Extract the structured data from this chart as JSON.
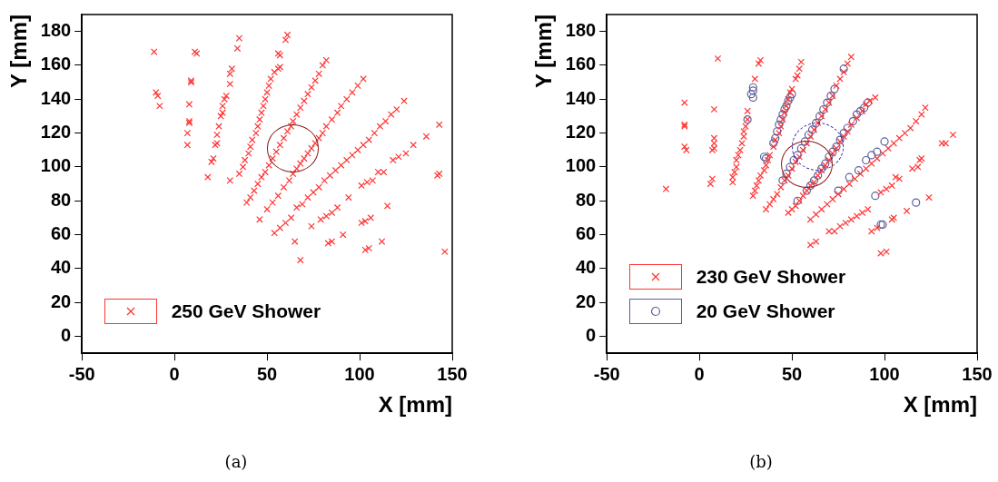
{
  "chart_data": [
    {
      "type": "scatter",
      "xlabel": "X [mm]",
      "ylabel": "Y [mm]",
      "xlim": [
        -50,
        150
      ],
      "ylim": [
        -10,
        190
      ],
      "xticks": [
        -50,
        0,
        50,
        100,
        150
      ],
      "yticks": [
        0,
        20,
        40,
        60,
        80,
        100,
        120,
        140,
        160,
        180
      ],
      "grid": false,
      "legend": "bottom left",
      "annotations": [
        "(a)"
      ],
      "series": [
        {
          "name": "250 GeV Shower",
          "color": "#ff3333",
          "marker": "cross",
          "x": [
            -11,
            -10,
            -9,
            -8,
            11,
            12,
            9,
            9,
            8,
            8,
            8,
            7,
            7,
            35,
            34,
            31,
            30,
            30,
            28,
            27,
            26,
            26,
            25,
            24,
            23,
            23,
            22,
            21,
            20,
            18,
            30,
            35,
            37,
            38,
            40,
            41,
            42,
            44,
            45,
            46,
            47,
            48,
            49,
            50,
            51,
            52,
            54,
            56,
            57,
            56,
            57,
            60,
            61,
            39,
            41,
            43,
            45,
            47,
            49,
            51,
            53,
            55,
            57,
            59,
            61,
            63,
            64,
            66,
            68,
            70,
            72,
            74,
            76,
            78,
            80,
            82,
            46,
            50,
            53,
            56,
            59,
            62,
            64,
            66,
            68,
            70,
            72,
            74,
            76,
            78,
            80,
            82,
            85,
            88,
            90,
            93,
            96,
            99,
            102,
            54,
            57,
            60,
            63,
            66,
            69,
            72,
            75,
            78,
            81,
            84,
            87,
            90,
            93,
            96,
            99,
            102,
            105,
            108,
            111,
            114,
            117,
            120,
            124,
            74,
            79,
            82,
            85,
            88,
            94,
            101,
            104,
            107,
            110,
            113,
            118,
            121,
            125,
            129,
            65,
            115,
            68,
            83,
            85,
            91,
            101,
            103,
            106,
            103,
            105,
            112,
            136,
            143,
            142,
            143,
            146
          ],
          "values": [
            168,
            144,
            142,
            136,
            168,
            167,
            151,
            150,
            137,
            127,
            126,
            120,
            113,
            176,
            170,
            158,
            155,
            149,
            142,
            140,
            136,
            132,
            130,
            124,
            119,
            114,
            113,
            105,
            103,
            94,
            92,
            96,
            100,
            104,
            108,
            112,
            116,
            120,
            124,
            128,
            132,
            136,
            140,
            144,
            148,
            152,
            156,
            158,
            159,
            167,
            166,
            175,
            178,
            79,
            82,
            86,
            90,
            94,
            97,
            101,
            105,
            109,
            113,
            117,
            121,
            124,
            127,
            131,
            135,
            139,
            143,
            147,
            151,
            155,
            160,
            163,
            69,
            75,
            79,
            83,
            88,
            92,
            96,
            99,
            102,
            105,
            108,
            111,
            114,
            117,
            120,
            124,
            128,
            132,
            136,
            140,
            144,
            148,
            152,
            61,
            64,
            67,
            70,
            76,
            78,
            82,
            85,
            88,
            92,
            95,
            98,
            101,
            104,
            107,
            110,
            113,
            116,
            120,
            124,
            127,
            131,
            134,
            139,
            65,
            69,
            71,
            73,
            76,
            82,
            89,
            91,
            92,
            97,
            97,
            104,
            106,
            108,
            113,
            56,
            77,
            45,
            55,
            56,
            60,
            67,
            68,
            70,
            51,
            52,
            56,
            118,
            125,
            95,
            96,
            50
          ]
        }
      ]
    },
    {
      "type": "scatter",
      "xlabel": "X [mm]",
      "ylabel": "Y [mm]",
      "xlim": [
        -50,
        150
      ],
      "ylim": [
        -10,
        190
      ],
      "xticks": [
        -50,
        0,
        50,
        100,
        150
      ],
      "yticks": [
        0,
        20,
        40,
        60,
        80,
        100,
        120,
        140,
        160,
        180
      ],
      "grid": false,
      "legend": "bottom left",
      "annotations": [
        "(b)"
      ],
      "series": [
        {
          "name": "230 GeV Shower",
          "color": "#ff3333",
          "marker": "cross",
          "x": [
            -18,
            -8,
            -8,
            -8,
            -8,
            -7,
            6,
            7,
            8,
            8,
            8,
            8,
            7,
            10,
            30,
            32,
            33,
            18,
            18,
            19,
            20,
            20,
            21,
            22,
            23,
            24,
            24,
            25,
            26,
            26,
            29,
            30,
            31,
            32,
            33,
            35,
            36,
            37,
            38,
            40,
            41,
            43,
            44,
            45,
            46,
            47,
            48,
            49,
            50,
            52,
            53,
            54,
            55,
            36,
            38,
            40,
            42,
            44,
            46,
            48,
            50,
            52,
            54,
            56,
            58,
            60,
            62,
            64,
            66,
            68,
            70,
            72,
            74,
            76,
            78,
            80,
            82,
            48,
            50,
            52,
            54,
            56,
            58,
            60,
            62,
            64,
            66,
            68,
            70,
            72,
            74,
            76,
            78,
            80,
            82,
            85,
            88,
            90,
            92,
            95,
            60,
            63,
            66,
            69,
            72,
            75,
            78,
            81,
            84,
            87,
            90,
            93,
            96,
            99,
            102,
            105,
            108,
            111,
            114,
            117,
            120,
            122,
            60,
            63,
            70,
            73,
            76,
            79,
            82,
            85,
            88,
            91,
            93,
            96,
            98,
            101,
            104,
            106,
            108,
            112,
            115,
            118,
            119,
            120,
            124,
            131,
            133,
            137,
            104,
            105,
            98,
            101
          ],
          "values": [
            87,
            138,
            125,
            124,
            112,
            110,
            90,
            93,
            134,
            117,
            114,
            111,
            110,
            164,
            152,
            161,
            163,
            91,
            94,
            97,
            100,
            104,
            107,
            110,
            114,
            118,
            121,
            124,
            128,
            133,
            83,
            86,
            89,
            92,
            95,
            98,
            101,
            104,
            107,
            112,
            116,
            120,
            124,
            128,
            132,
            136,
            140,
            144,
            146,
            152,
            154,
            158,
            162,
            75,
            78,
            81,
            84,
            88,
            92,
            95,
            99,
            103,
            106,
            110,
            114,
            118,
            122,
            126,
            130,
            134,
            138,
            142,
            148,
            152,
            156,
            161,
            165,
            73,
            75,
            77,
            80,
            83,
            86,
            89,
            91,
            95,
            98,
            101,
            104,
            108,
            111,
            115,
            118,
            121,
            125,
            129,
            133,
            137,
            139,
            141,
            69,
            72,
            75,
            78,
            81,
            84,
            87,
            90,
            93,
            96,
            99,
            102,
            105,
            108,
            111,
            114,
            117,
            120,
            123,
            127,
            131,
            135,
            54,
            56,
            62,
            62,
            65,
            67,
            69,
            71,
            73,
            75,
            62,
            64,
            85,
            87,
            89,
            94,
            93,
            74,
            99,
            100,
            104,
            105,
            82,
            114,
            114,
            119,
            69,
            70,
            49,
            50
          ]
        },
        {
          "name": "20 GeV Shower",
          "color": "#5b5f9c",
          "marker": "circle",
          "x": [
            26,
            28,
            29,
            29,
            29,
            36,
            35,
            40,
            41,
            42,
            43,
            44,
            45,
            46,
            47,
            48,
            49,
            50,
            45,
            47,
            49,
            51,
            53,
            55,
            57,
            59,
            61,
            63,
            65,
            67,
            69,
            71,
            73,
            78,
            53,
            58,
            60,
            62,
            64,
            66,
            68,
            70,
            72,
            74,
            76,
            78,
            80,
            83,
            85,
            87,
            89,
            91,
            75,
            81,
            86,
            90,
            93,
            96,
            100,
            95,
            98,
            99,
            117
          ],
          "values": [
            128,
            143,
            145,
            147,
            141,
            105,
            106,
            114,
            117,
            121,
            125,
            128,
            131,
            134,
            136,
            139,
            141,
            143,
            92,
            96,
            100,
            104,
            107,
            111,
            115,
            119,
            122,
            126,
            130,
            134,
            138,
            142,
            146,
            158,
            80,
            86,
            89,
            92,
            95,
            99,
            102,
            106,
            109,
            112,
            116,
            120,
            123,
            127,
            131,
            133,
            135,
            138,
            86,
            94,
            98,
            104,
            107,
            109,
            115,
            83,
            66,
            66,
            79
          ]
        }
      ]
    }
  ]
}
